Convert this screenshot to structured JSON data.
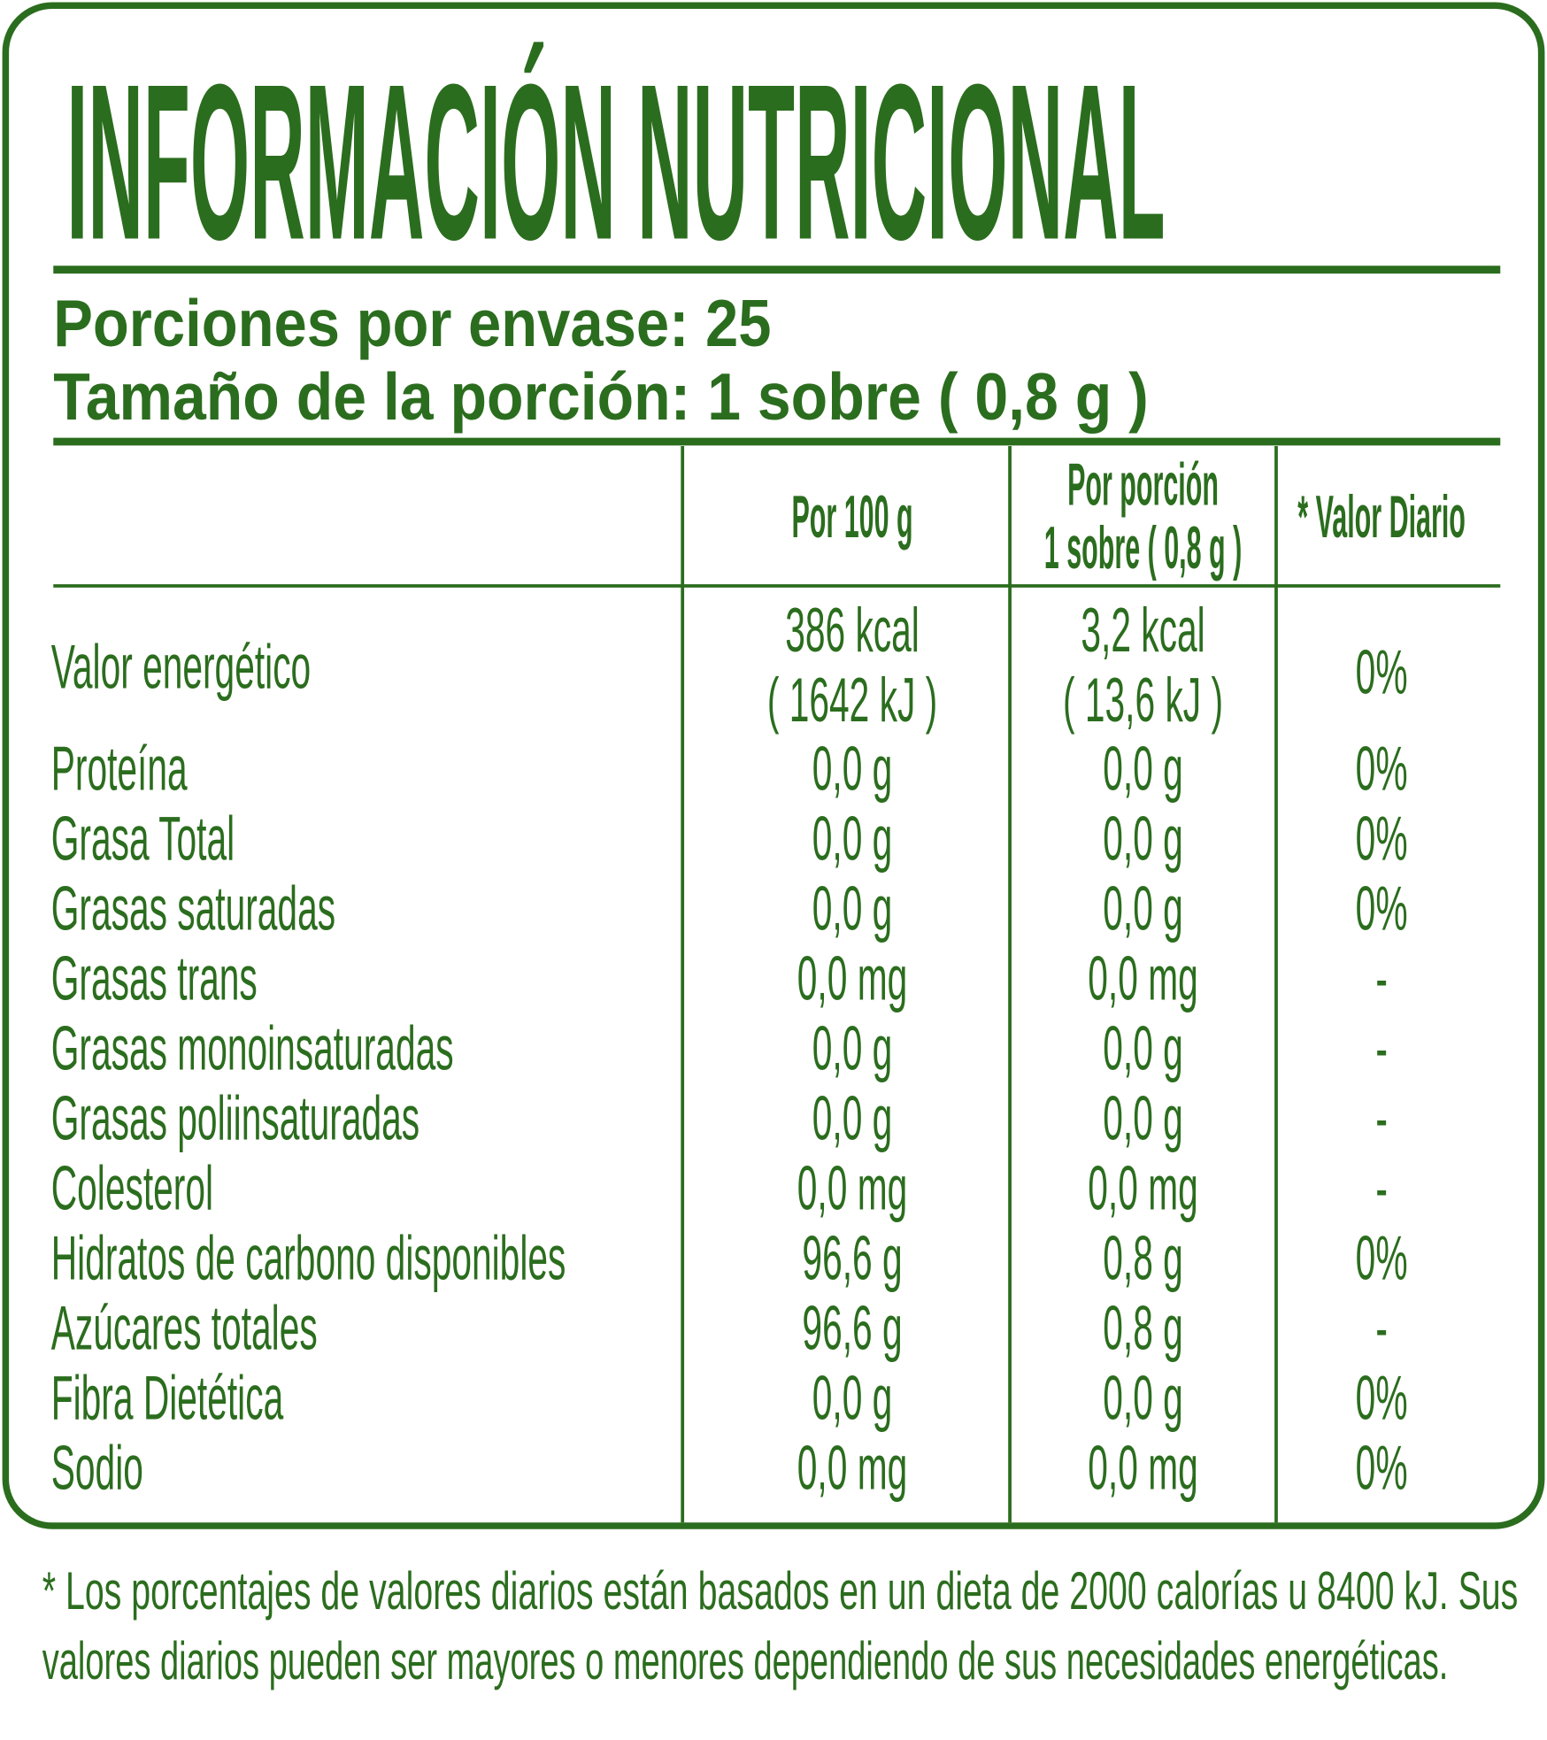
{
  "header": {
    "title": "INFORMACIÓN NUTRICIONAL",
    "servings_per_container": "Porciones por envase: 25",
    "serving_size": "Tamaño de la porción: 1 sobre ( 0,8 g )"
  },
  "table": {
    "columns": [
      "Por 100 g",
      [
        "Por porción",
        "1 sobre ( 0,8 g )"
      ],
      "* Valor Diario"
    ],
    "rows": [
      [
        "Valor energético",
        [
          "386 kcal",
          "( 1642 kJ )"
        ],
        [
          "3,2 kcal",
          "( 13,6 kJ )"
        ],
        "0%"
      ],
      [
        "Proteína",
        "0,0 g",
        "0,0 g",
        "0%"
      ],
      [
        "Grasa Total",
        "0,0 g",
        "0,0 g",
        "0%"
      ],
      [
        "Grasas saturadas",
        "0,0 g",
        "0,0 g",
        "0%"
      ],
      [
        "Grasas trans",
        "0,0 mg",
        "0,0 mg",
        "-"
      ],
      [
        "Grasas monoinsaturadas",
        "0,0 g",
        "0,0 g",
        "-"
      ],
      [
        "Grasas poliinsaturadas",
        "0,0 g",
        "0,0 g",
        "-"
      ],
      [
        "Colesterol",
        "0,0 mg",
        "0,0 mg",
        "-"
      ],
      [
        "Hidratos de carbono disponibles",
        "96,6 g",
        "0,8 g",
        "0%"
      ],
      [
        "Azúcares totales",
        "96,6 g",
        "0,8 g",
        "-"
      ],
      [
        "Fibra Dietética",
        "0,0 g",
        "0,0 g",
        "0%"
      ],
      [
        "Sodio",
        "0,0 mg",
        "0,0 mg",
        "0%"
      ]
    ]
  },
  "footnote": [
    "* Los porcentajes de valores diarios están basados en un dieta de 2000 calorías u 8400 kJ. Sus",
    "valores diarios pueden ser mayores o menores dependiendo de sus necesidades energéticas."
  ]
}
